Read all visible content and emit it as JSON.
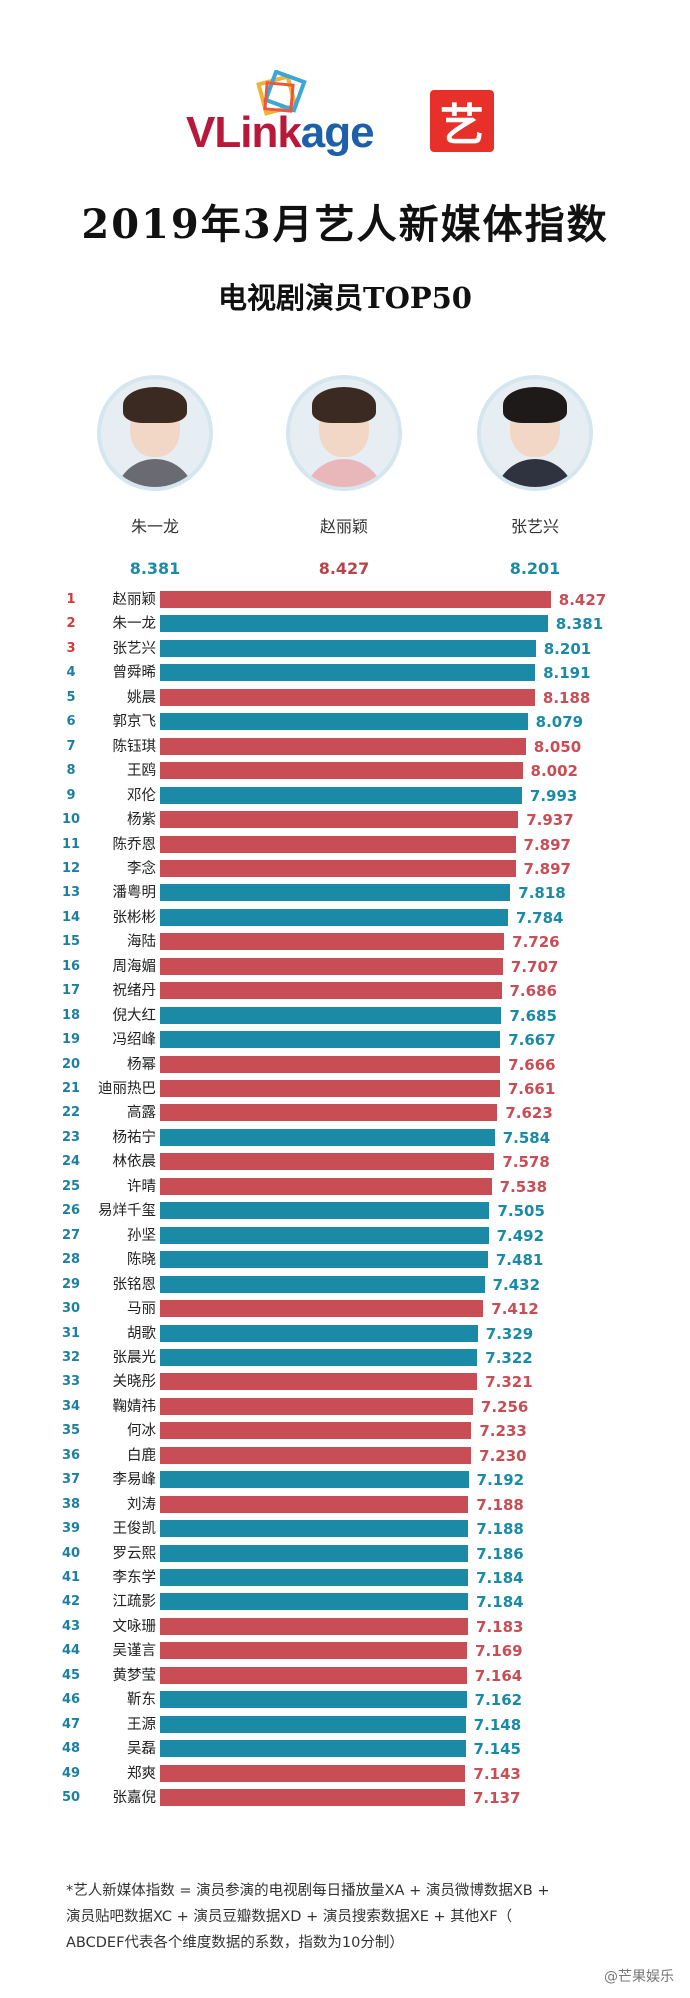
{
  "brand": {
    "logo_part1": "VLink",
    "logo_part2": "age",
    "badge": "艺"
  },
  "title": "2019年3月艺人新媒体指数",
  "subtitle": "电视剧演员TOP50",
  "podium": [
    {
      "name": "朱一龙",
      "score": "8.381",
      "color": "#1c8ba5"
    },
    {
      "name": "赵丽颖",
      "score": "8.427",
      "color": "#b8434a"
    },
    {
      "name": "张艺兴",
      "score": "8.201",
      "color": "#1c8ba5"
    }
  ],
  "colors": {
    "red": "#c94d55",
    "blue": "#1a8aa6",
    "rank_top": "#d33a3a",
    "rank_other": "#1e7fa0"
  },
  "chart_data": {
    "type": "bar",
    "orientation": "horizontal",
    "grid": false,
    "ranks": [
      1,
      2,
      3,
      4,
      5,
      6,
      7,
      8,
      9,
      10,
      11,
      12,
      13,
      14,
      15,
      16,
      17,
      18,
      19,
      20,
      21,
      22,
      23,
      24,
      25,
      26,
      27,
      28,
      29,
      30,
      31,
      32,
      33,
      34,
      35,
      36,
      37,
      38,
      39,
      40,
      41,
      42,
      43,
      44,
      45,
      46,
      47,
      48,
      49,
      50
    ],
    "categories": [
      "赵丽颖",
      "朱一龙",
      "张艺兴",
      "曾舜晞",
      "姚晨",
      "郭京飞",
      "陈钰琪",
      "王鸥",
      "邓伦",
      "杨紫",
      "陈乔恩",
      "李念",
      "潘粤明",
      "张彬彬",
      "海陆",
      "周海媚",
      "祝绪丹",
      "倪大红",
      "冯绍峰",
      "杨幂",
      "迪丽热巴",
      "高露",
      "杨祐宁",
      "林依晨",
      "许晴",
      "易烊千玺",
      "孙坚",
      "陈晓",
      "张铭恩",
      "马丽",
      "胡歌",
      "张晨光",
      "关晓彤",
      "鞠婧祎",
      "何冰",
      "白鹿",
      "李易峰",
      "刘涛",
      "王俊凯",
      "罗云熙",
      "李东学",
      "江疏影",
      "文咏珊",
      "吴谨言",
      "黄梦莹",
      "靳东",
      "王源",
      "吴磊",
      "郑爽",
      "张嘉倪"
    ],
    "values": [
      8.427,
      8.381,
      8.201,
      8.191,
      8.188,
      8.079,
      8.05,
      8.002,
      7.993,
      7.937,
      7.897,
      7.897,
      7.818,
      7.784,
      7.726,
      7.707,
      7.686,
      7.685,
      7.667,
      7.666,
      7.661,
      7.623,
      7.584,
      7.578,
      7.538,
      7.505,
      7.492,
      7.481,
      7.432,
      7.412,
      7.329,
      7.322,
      7.321,
      7.256,
      7.233,
      7.23,
      7.192,
      7.188,
      7.188,
      7.186,
      7.184,
      7.184,
      7.183,
      7.169,
      7.164,
      7.162,
      7.148,
      7.145,
      7.143,
      7.137
    ],
    "value_labels": [
      "8.427",
      "8.381",
      "8.201",
      "8.191",
      "8.188",
      "8.079",
      "8.050",
      "8.002",
      "7.993",
      "7.937",
      "7.897",
      "7.897",
      "7.818",
      "7.784",
      "7.726",
      "7.707",
      "7.686",
      "7.685",
      "7.667",
      "7.666",
      "7.661",
      "7.623",
      "7.584",
      "7.578",
      "7.538",
      "7.505",
      "7.492",
      "7.481",
      "7.432",
      "7.412",
      "7.329",
      "7.322",
      "7.321",
      "7.256",
      "7.233",
      "7.230",
      "7.192",
      "7.188",
      "7.188",
      "7.186",
      "7.184",
      "7.184",
      "7.183",
      "7.169",
      "7.164",
      "7.162",
      "7.148",
      "7.145",
      "7.143",
      "7.137"
    ],
    "bar_colors": [
      "red",
      "blue",
      "blue",
      "blue",
      "red",
      "blue",
      "red",
      "red",
      "blue",
      "red",
      "red",
      "red",
      "blue",
      "blue",
      "red",
      "red",
      "red",
      "blue",
      "blue",
      "red",
      "red",
      "red",
      "blue",
      "red",
      "red",
      "blue",
      "blue",
      "blue",
      "blue",
      "red",
      "blue",
      "blue",
      "red",
      "red",
      "red",
      "red",
      "blue",
      "red",
      "blue",
      "blue",
      "blue",
      "blue",
      "red",
      "red",
      "red",
      "blue",
      "blue",
      "blue",
      "red",
      "red"
    ]
  },
  "footnote": [
    "*艺人新媒体指数 = 演员参演的电视剧每日播放量XA + 演员微博数据XB +",
    "演员贴吧数据XC + 演员豆瓣数据XD + 演员搜索数据XE + 其他XF（",
    "ABCDEF代表各个维度数据的系数，指数为10分制）"
  ],
  "watermark": "@芒果娱乐"
}
